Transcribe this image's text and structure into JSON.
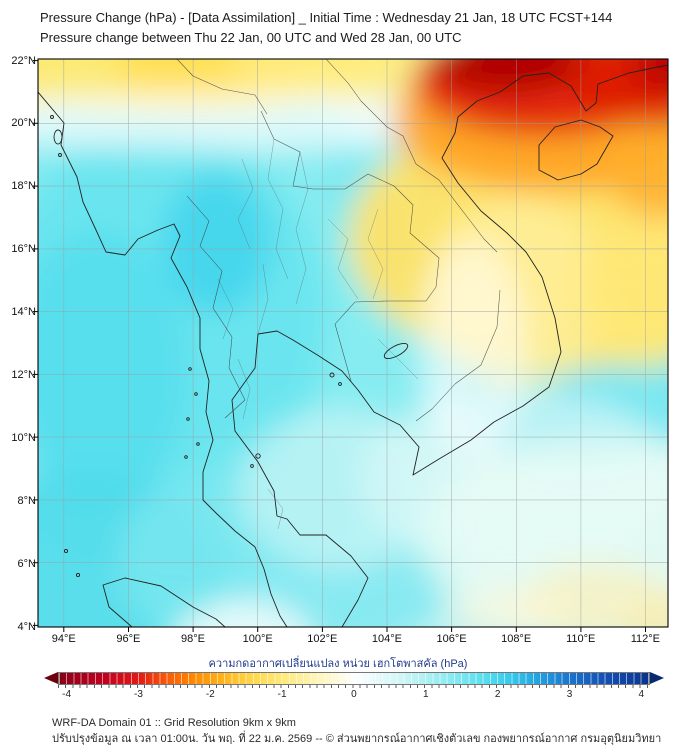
{
  "header": {
    "title_line1": "Pressure Change (hPa) - [Data Assimilation] _ Initial Time : Wednesday 21 Jan, 18 UTC FCST+144",
    "title_line2": "Pressure change between Thu 22 Jan, 00 UTC and Wed 28 Jan, 00 UTC"
  },
  "map": {
    "lat_labels": [
      "22°N",
      "20°N",
      "18°N",
      "16°N",
      "14°N",
      "12°N",
      "10°N",
      "8°N",
      "6°N",
      "4°N"
    ],
    "lon_labels": [
      "94°E",
      "96°E",
      "98°E",
      "100°E",
      "102°E",
      "104°E",
      "106°E",
      "108°E",
      "110°E",
      "112°E"
    ],
    "field_units": "hPa",
    "field_summary": [
      {
        "area": "northern Vietnam / south China coast (104-112E, 19.5-22N)",
        "pressure_change": "-3 to -4"
      },
      {
        "area": "Gulf of Tonkin and around Hainan",
        "pressure_change": "-2 to -3"
      },
      {
        "area": "Laos and Vietnam coast down to ~13N; 21-22N band west of 103E",
        "pressure_change": "-0.5 to -1.5"
      },
      {
        "area": "Thailand, Myanmar, Andaman Sea, Gulf of Thailand",
        "pressure_change": "+0.5 to +1.5"
      },
      {
        "area": "south-east quadrant (lower South China Sea)",
        "pressure_change": "0 to +1"
      },
      {
        "area": "bottom-right corner patches",
        "pressure_change": "0 to -0.5"
      }
    ]
  },
  "colorbar": {
    "label": "ความกดอากาศเปลี่ยนแปลง หน่วย เฮกโตพาสคัล (hPa)",
    "label_color": "#1f3c8c",
    "tick_labels": [
      "-4",
      "-3",
      "-2",
      "-1",
      "0",
      "1",
      "2",
      "3",
      "4"
    ],
    "range_min": -4,
    "range_max": 4,
    "left_arrow_color": "#6e000e",
    "right_arrow_color": "#082a6e",
    "gradient": [
      {
        "pct": 0,
        "color": "#800012"
      },
      {
        "pct": 1.5,
        "color": "#96001a"
      },
      {
        "pct": 7.5,
        "color": "#c00020"
      },
      {
        "pct": 13.6,
        "color": "#e41a15"
      },
      {
        "pct": 18.4,
        "color": "#fa5b07"
      },
      {
        "pct": 23.3,
        "color": "#ff8d00"
      },
      {
        "pct": 28.2,
        "color": "#ffb71e"
      },
      {
        "pct": 33.0,
        "color": "#ffd84d"
      },
      {
        "pct": 37.9,
        "color": "#ffe978"
      },
      {
        "pct": 42.7,
        "color": "#fef3ae"
      },
      {
        "pct": 47.6,
        "color": "#fffbe0"
      },
      {
        "pct": 50.0,
        "color": "#ffffff"
      },
      {
        "pct": 52.4,
        "color": "#f0fcfc"
      },
      {
        "pct": 57.3,
        "color": "#d4f7f7"
      },
      {
        "pct": 62.1,
        "color": "#aef0f3"
      },
      {
        "pct": 67.0,
        "color": "#84e9f1"
      },
      {
        "pct": 71.8,
        "color": "#59dff0"
      },
      {
        "pct": 76.7,
        "color": "#35c8ec"
      },
      {
        "pct": 81.6,
        "color": "#219fe0"
      },
      {
        "pct": 86.4,
        "color": "#1b76cf"
      },
      {
        "pct": 92.5,
        "color": "#1350b4"
      },
      {
        "pct": 98.5,
        "color": "#0c3a96"
      },
      {
        "pct": 100,
        "color": "#0a3188"
      }
    ]
  },
  "footer": {
    "line1": "WRF-DA Domain 01 :: Grid Resolution 9km x 9km",
    "line2": "ปรับปรุงข้อมูล ณ เวลา 01:00น. วัน พฤ. ที่ 22 ม.ค. 2569 -- © ส่วนพยากรณ์อากาศเชิงตัวเลข กองพยากรณ์อากาศ กรมอุตุนิยมวิทยา"
  },
  "palette": {
    "strong_fall": "#b30006",
    "fall": "#e32206",
    "moderate_fall": "#ffa21f",
    "weak_fall": "#ffe366",
    "neutral": "#ffffff",
    "weak_rise": "#aef0f3",
    "rise": "#55dded",
    "grid": "#9aa0a4",
    "coast": "#222222"
  }
}
